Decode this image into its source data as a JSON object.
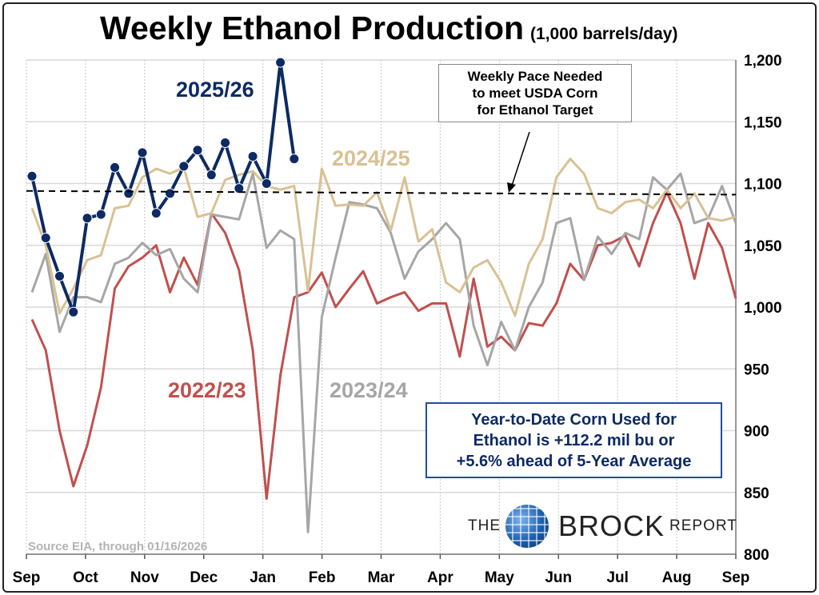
{
  "chart_data": {
    "type": "line",
    "title": "Weekly Ethanol Production",
    "subtitle": "(1,000 barrels/day)",
    "ylim": [
      800,
      1200
    ],
    "yticks": [
      800,
      850,
      900,
      950,
      1000,
      1050,
      1100,
      1150,
      1200
    ],
    "ytick_labels": [
      "800",
      "850",
      "900",
      "950",
      "1,000",
      "1,050",
      "1,100",
      "1,150",
      "1,200"
    ],
    "xtick_labels": [
      "Sep",
      "Oct",
      "Nov",
      "Dec",
      "Jan",
      "Feb",
      "Mar",
      "Apr",
      "May",
      "Jun",
      "Jul",
      "Aug",
      "Sep"
    ],
    "grid": true,
    "weeks": 52,
    "series": [
      {
        "name": "2022/23",
        "color": "#c0504d",
        "values": [
          990,
          965,
          900,
          855,
          888,
          935,
          1015,
          1033,
          1040,
          1050,
          1012,
          1040,
          1018,
          1076,
          1060,
          1030,
          965,
          845,
          945,
          1008,
          1012,
          1028,
          1000,
          1015,
          1029,
          1003,
          1008,
          1012,
          997,
          1003,
          1003,
          960,
          1023,
          968,
          976,
          965,
          987,
          985,
          1003,
          1035,
          1022,
          1050,
          1052,
          1058,
          1033,
          1068,
          1093,
          1068,
          1023,
          1068,
          1048,
          1007
        ]
      },
      {
        "name": "2023/24",
        "color": "#a6a6a6",
        "values": [
          1012,
          1043,
          980,
          1008,
          1008,
          1004,
          1035,
          1040,
          1052,
          1042,
          1047,
          1023,
          1012,
          1075,
          1073,
          1071,
          1108,
          1048,
          1062,
          1055,
          818,
          992,
          1040,
          1085,
          1083,
          1080,
          1060,
          1023,
          1045,
          1055,
          1068,
          1055,
          985,
          953,
          988,
          965,
          1000,
          1020,
          1068,
          1072,
          1022,
          1057,
          1043,
          1060,
          1055,
          1105,
          1095,
          1108,
          1068,
          1072,
          1098,
          1068
        ]
      },
      {
        "name": "2024/25",
        "color": "#d9c193",
        "values": [
          1080,
          1050,
          995,
          1015,
          1038,
          1042,
          1080,
          1082,
          1105,
          1112,
          1108,
          1113,
          1073,
          1076,
          1103,
          1107,
          1110,
          1098,
          1095,
          1098,
          1013,
          1112,
          1082,
          1083,
          1082,
          1093,
          1062,
          1105,
          1053,
          1063,
          1020,
          1012,
          1032,
          1038,
          1020,
          993,
          1035,
          1055,
          1105,
          1120,
          1108,
          1080,
          1076,
          1085,
          1087,
          1080,
          1095,
          1080,
          1092,
          1072,
          1070,
          1073
        ]
      },
      {
        "name": "2025/26",
        "color": "#0d2a63",
        "markers": true,
        "values": [
          1106,
          1056,
          1025,
          996,
          1072,
          1075,
          1113,
          1092,
          1125,
          1076,
          1092,
          1114,
          1127,
          1107,
          1133,
          1096,
          1122,
          1100,
          1198,
          1120
        ]
      }
    ],
    "target_line": {
      "label": "Weekly Pace Needed to meet USDA Corn for Ethanol Target",
      "values": [
        1094,
        1091
      ]
    },
    "annotations": {
      "note_lines": [
        "Weekly Pace Needed",
        "to meet USDA Corn",
        "for Ethanol Target"
      ],
      "ytd_lines": [
        "Year-to-Date Corn Used for",
        "Ethanol is +112.2 mil bu or",
        "+5.6% ahead of 5-Year Average"
      ],
      "source": "Source EIA, through 01/16/2026"
    }
  },
  "logo": {
    "the": "THE",
    "brock": "BROCK",
    "report": "REPORT"
  }
}
